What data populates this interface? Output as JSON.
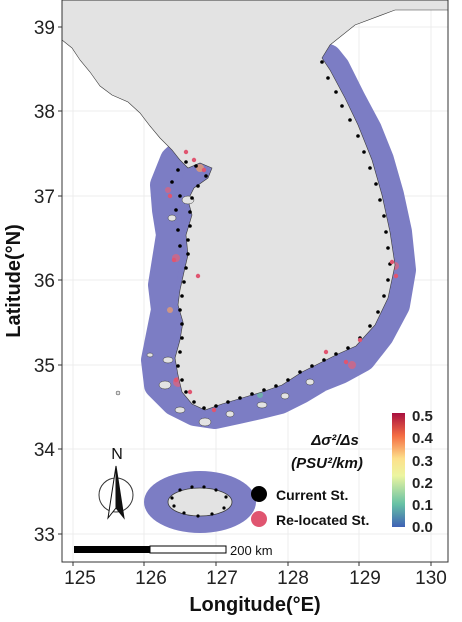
{
  "axes": {
    "xlabel": "Longitude(°E)",
    "ylabel": "Latitude(°N)",
    "xticks": [
      "125",
      "126",
      "127",
      "128",
      "129",
      "130"
    ],
    "yticks": [
      "33",
      "34",
      "35",
      "36",
      "37",
      "38",
      "39"
    ],
    "xlim": [
      124.85,
      130.3
    ],
    "ylim": [
      32.85,
      39.25
    ]
  },
  "north_arrow": {
    "label": "N"
  },
  "scale_bar": {
    "label": "200 km"
  },
  "colorbar": {
    "title_line1": "Δσ²/Δs",
    "title_line2": "(PSU²/km)",
    "ticks": [
      "0.0",
      "0.1",
      "0.2",
      "0.3",
      "0.4",
      "0.5"
    ],
    "colors": [
      "#3f61b5",
      "#66c1a5",
      "#ecf5a0",
      "#fde08b",
      "#f46d43",
      "#a8103f"
    ]
  },
  "legend": {
    "items": [
      {
        "label": "Current St.",
        "color": "#000000"
      },
      {
        "label": "Re-located St.",
        "color": "#e05570"
      }
    ]
  },
  "colors": {
    "land": "#e3e3e3",
    "buffer": "#7c7dc4",
    "grid": "#ececec"
  }
}
